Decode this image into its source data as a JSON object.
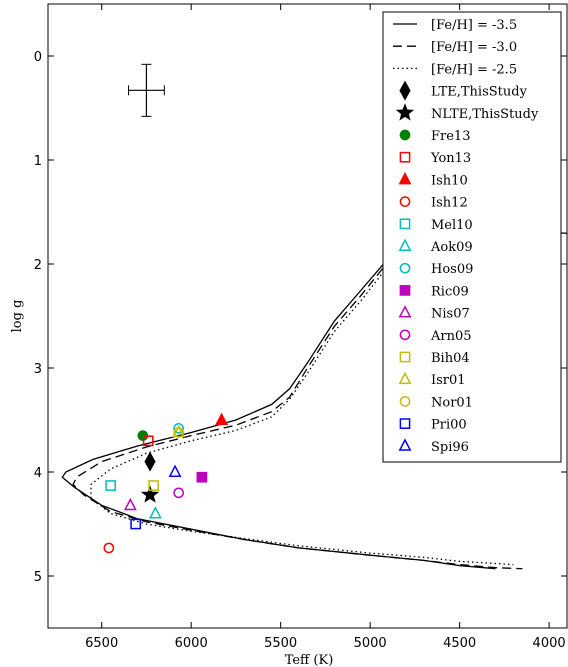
{
  "chart_data": {
    "type": "scatter",
    "xlabel": "Teff (K)",
    "ylabel": "log g",
    "xlim": [
      6800,
      3900
    ],
    "ylim": [
      -0.5,
      5.5
    ],
    "x_ticks": [
      6500,
      6000,
      5500,
      5000,
      4500,
      4000
    ],
    "y_ticks": [
      0,
      1,
      2,
      3,
      4,
      5
    ],
    "x_tick_labels": [
      "6500",
      "6000",
      "5500",
      "5000",
      "4500",
      "4000"
    ],
    "y_tick_labels": [
      "0",
      "1",
      "2",
      "3",
      "4",
      "5"
    ],
    "grid": false,
    "legend_position": "upper right",
    "error_bar": {
      "x": 6250,
      "y": 0.33,
      "x_err": 100,
      "y_err": 0.25
    },
    "isochrones": [
      {
        "name": "[Fe/H] = -3.5",
        "style": "solid",
        "points": [
          [
            1000,
            1.9
          ],
          [
            4700,
            1.65
          ],
          [
            4900,
            1.95
          ],
          [
            5050,
            2.25
          ],
          [
            5200,
            2.55
          ],
          [
            5350,
            2.95
          ],
          [
            5450,
            3.2
          ],
          [
            5550,
            3.35
          ],
          [
            5750,
            3.5
          ],
          [
            6000,
            3.62
          ],
          [
            6300,
            3.75
          ],
          [
            6550,
            3.88
          ],
          [
            6700,
            4.0
          ],
          [
            6720,
            4.05
          ],
          [
            6650,
            4.15
          ],
          [
            6500,
            4.32
          ],
          [
            6300,
            4.45
          ],
          [
            6000,
            4.55
          ],
          [
            5700,
            4.65
          ],
          [
            5400,
            4.73
          ],
          [
            5000,
            4.8
          ],
          [
            4700,
            4.85
          ],
          [
            4500,
            4.9
          ],
          [
            4300,
            4.93
          ]
        ]
      },
      {
        "name": "[Fe/H] = -3.0",
        "style": "dashed",
        "points": [
          [
            4700,
            1.68
          ],
          [
            4900,
            1.98
          ],
          [
            5050,
            2.3
          ],
          [
            5200,
            2.6
          ],
          [
            5350,
            3.0
          ],
          [
            5450,
            3.28
          ],
          [
            5550,
            3.42
          ],
          [
            5750,
            3.55
          ],
          [
            6000,
            3.65
          ],
          [
            6250,
            3.76
          ],
          [
            6500,
            3.9
          ],
          [
            6640,
            4.05
          ],
          [
            6660,
            4.12
          ],
          [
            6600,
            4.22
          ],
          [
            6450,
            4.38
          ],
          [
            6250,
            4.48
          ],
          [
            6000,
            4.56
          ],
          [
            5700,
            4.65
          ],
          [
            5400,
            4.73
          ],
          [
            5000,
            4.8
          ],
          [
            4700,
            4.85
          ],
          [
            4500,
            4.89
          ],
          [
            4300,
            4.92
          ],
          [
            4150,
            4.93
          ]
        ]
      },
      {
        "name": "[Fe/H] = -2.5",
        "style": "dotted",
        "points": [
          [
            4700,
            1.72
          ],
          [
            4900,
            2.02
          ],
          [
            5050,
            2.35
          ],
          [
            5200,
            2.65
          ],
          [
            5350,
            3.05
          ],
          [
            5450,
            3.3
          ],
          [
            5550,
            3.47
          ],
          [
            5750,
            3.6
          ],
          [
            6000,
            3.7
          ],
          [
            6250,
            3.82
          ],
          [
            6450,
            3.97
          ],
          [
            6560,
            4.12
          ],
          [
            6560,
            4.25
          ],
          [
            6450,
            4.4
          ],
          [
            6250,
            4.5
          ],
          [
            6000,
            4.57
          ],
          [
            5700,
            4.64
          ],
          [
            5400,
            4.71
          ],
          [
            5000,
            4.78
          ],
          [
            4700,
            4.82
          ],
          [
            4500,
            4.86
          ],
          [
            4300,
            4.88
          ],
          [
            4200,
            4.89
          ]
        ]
      }
    ],
    "series": [
      {
        "name": "LTE,ThisStudy",
        "marker": "diamond",
        "filled": true,
        "color": "#000000",
        "x": [
          6230
        ],
        "y": [
          3.9
        ]
      },
      {
        "name": "NLTE,ThisStudy",
        "marker": "star",
        "filled": true,
        "color": "#000000",
        "x": [
          6230
        ],
        "y": [
          4.22
        ]
      },
      {
        "name": "Fre13",
        "marker": "circle",
        "filled": true,
        "color": "#008000",
        "x": [
          6270
        ],
        "y": [
          3.65
        ]
      },
      {
        "name": "Yon13",
        "marker": "square",
        "filled": false,
        "color": "#ff0000",
        "x": [
          6240
        ],
        "y": [
          3.7
        ]
      },
      {
        "name": "Ish10",
        "marker": "triangle",
        "filled": true,
        "color": "#ff0000",
        "x": [
          5830
        ],
        "y": [
          3.5
        ]
      },
      {
        "name": "Ish12",
        "marker": "circle",
        "filled": false,
        "color": "#ff0000",
        "x": [
          6460
        ],
        "y": [
          4.73
        ]
      },
      {
        "name": "Mel10",
        "marker": "square",
        "filled": false,
        "color": "#00bfbf",
        "x": [
          6450
        ],
        "y": [
          4.13
        ]
      },
      {
        "name": "Aok09",
        "marker": "triangle",
        "filled": false,
        "color": "#00bfbf",
        "x": [
          6200
        ],
        "y": [
          4.4
        ]
      },
      {
        "name": "Hos09",
        "marker": "circle",
        "filled": false,
        "color": "#00bfbf",
        "x": [
          6070
        ],
        "y": [
          3.58
        ]
      },
      {
        "name": "Ric09",
        "marker": "square",
        "filled": true,
        "color": "#bf00bf",
        "x": [
          5940
        ],
        "y": [
          4.05
        ]
      },
      {
        "name": "Nis07",
        "marker": "triangle",
        "filled": false,
        "color": "#bf00bf",
        "x": [
          6340
        ],
        "y": [
          4.32
        ]
      },
      {
        "name": "Arn05",
        "marker": "circle",
        "filled": false,
        "color": "#bf00bf",
        "x": [
          6070
        ],
        "y": [
          4.2
        ]
      },
      {
        "name": "Bih04",
        "marker": "square",
        "filled": false,
        "color": "#bfbf00",
        "x": [
          6210
        ],
        "y": [
          4.13
        ]
      },
      {
        "name": "Isr01",
        "marker": "triangle",
        "filled": false,
        "color": "#bfbf00",
        "x": [
          6070
        ],
        "y": [
          3.62
        ]
      },
      {
        "name": "Nor01",
        "marker": "circle",
        "filled": false,
        "color": "#bfbf00",
        "x": [
          6070
        ],
        "y": [
          3.62
        ]
      },
      {
        "name": "Pri00",
        "marker": "square",
        "filled": false,
        "color": "#0000ff",
        "x": [
          6310
        ],
        "y": [
          4.5
        ]
      },
      {
        "name": "Spi96",
        "marker": "triangle",
        "filled": false,
        "color": "#0000ff",
        "x": [
          6090
        ],
        "y": [
          4.0
        ]
      }
    ]
  }
}
